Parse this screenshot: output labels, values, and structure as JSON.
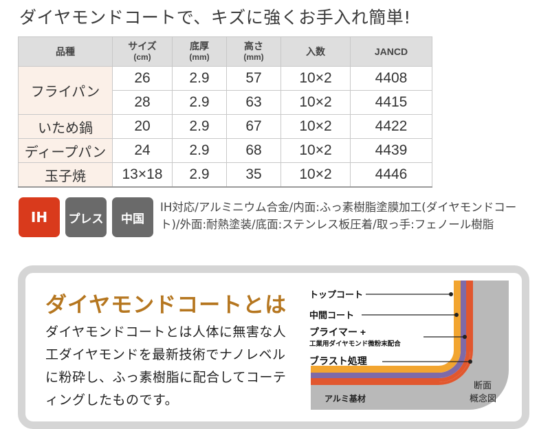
{
  "headline": "ダイヤモンドコートで、キズに強くお手入れ簡単!",
  "table": {
    "headers": [
      {
        "label": "品種",
        "unit": ""
      },
      {
        "label": "サイズ",
        "unit": "(cm)"
      },
      {
        "label": "底厚",
        "unit": "(mm)"
      },
      {
        "label": "高さ",
        "unit": "(mm)"
      },
      {
        "label": "入数",
        "unit": ""
      },
      {
        "label": "JANCD",
        "unit": ""
      }
    ],
    "rows": [
      {
        "name": "フライパン",
        "size": "26",
        "bottom": "2.9",
        "height": "57",
        "qty": "10×2",
        "jan": "4408"
      },
      {
        "name": "",
        "size": "28",
        "bottom": "2.9",
        "height": "63",
        "qty": "10×2",
        "jan": "4415"
      },
      {
        "name": "いため鍋",
        "size": "20",
        "bottom": "2.9",
        "height": "67",
        "qty": "10×2",
        "jan": "4422"
      },
      {
        "name": "ディープパン",
        "size": "24",
        "bottom": "2.9",
        "height": "68",
        "qty": "10×2",
        "jan": "4439"
      },
      {
        "name": "玉子焼",
        "size": "13×18",
        "bottom": "2.9",
        "height": "35",
        "qty": "10×2",
        "jan": "4446"
      }
    ]
  },
  "badges": {
    "ih": "IH",
    "press": "プレス",
    "china": "中国"
  },
  "note": "IH対応/アルミニウム合金/内面:ふっ素樹脂塗膜加工(ダイヤモンドコート)/外面:耐熱塗装/底面:ステンレス板圧着/取っ手:フェノール樹脂",
  "panel": {
    "title": "ダイヤモンドコートとは",
    "body": "ダイヤモンドコートとは人体に無害な人工ダイヤモンドを最新技術でナノレベルに粉砕し、ふっ素樹脂に配合してコーティングしたものです。"
  },
  "diagram": {
    "labels": {
      "top": "トップコート",
      "mid": "中間コート",
      "primer": "プライマー +",
      "primer_sub": "工業用ダイヤモンド微粉末配合",
      "blast": "ブラスト処理",
      "base": "アルミ基材",
      "caption1": "断面",
      "caption2": "概念図"
    },
    "colors": {
      "orange": "#f2a530",
      "purple": "#7e6aa8",
      "red": "#e1572e",
      "gray": "#b9b9b9"
    }
  }
}
